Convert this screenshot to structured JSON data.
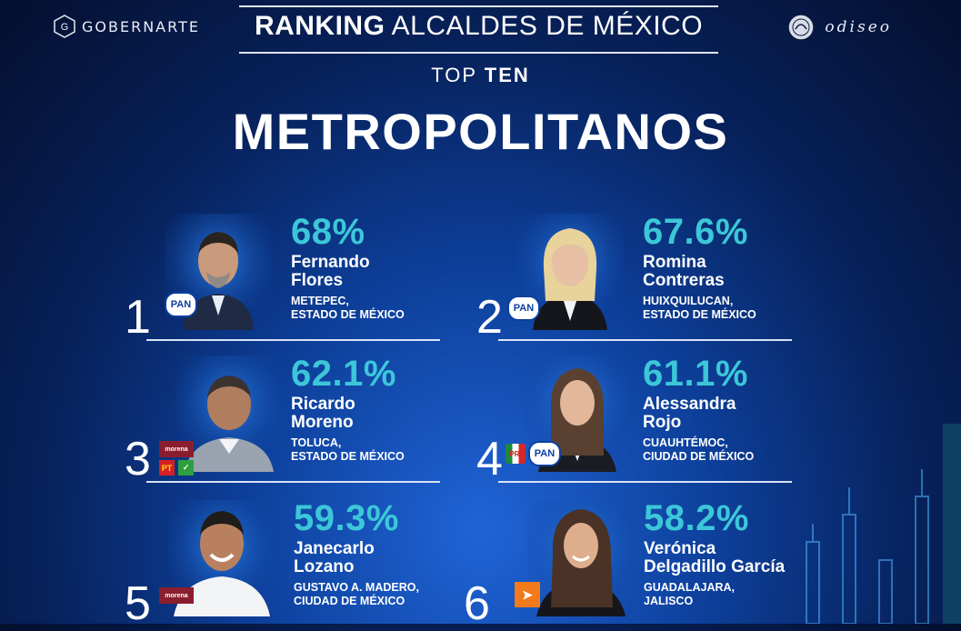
{
  "header": {
    "logo_left": "GOBERNARTE",
    "logo_right": "odiseo",
    "title_bold": "RANKING",
    "title_light": "ALCALDES DE MÉXICO",
    "subtitle_light": "TOP",
    "subtitle_bold": "TEN",
    "category": "METROPOLITANOS"
  },
  "colors": {
    "percent": "#3cc7d8",
    "background": "#0d3f9a"
  },
  "mayors": [
    {
      "rank": "1",
      "percent": "68%",
      "name_line1": "Fernando",
      "name_line2": "Flores",
      "place_line1": "METEPEC,",
      "place_line2": "ESTADO DE MÉXICO",
      "parties": [
        "PAN"
      ]
    },
    {
      "rank": "2",
      "percent": "67.6%",
      "name_line1": "Romina",
      "name_line2": "Contreras",
      "place_line1": "HUIXQUILUCAN,",
      "place_line2": "ESTADO DE MÉXICO",
      "parties": [
        "PAN"
      ]
    },
    {
      "rank": "3",
      "percent": "62.1%",
      "name_line1": "Ricardo",
      "name_line2": "Moreno",
      "place_line1": "TOLUCA,",
      "place_line2": "ESTADO DE MÉXICO",
      "parties": [
        "morena",
        "PT",
        "VERDE"
      ]
    },
    {
      "rank": "4",
      "percent": "61.1%",
      "name_line1": "Alessandra",
      "name_line2": "Rojo",
      "place_line1": "CUAUHTÉMOC,",
      "place_line2": "CIUDAD DE MÉXICO",
      "parties": [
        "PRI",
        "PAN"
      ]
    },
    {
      "rank": "5",
      "percent": "59.3%",
      "name_line1": "Janecarlo",
      "name_line2": "Lozano",
      "place_line1": "GUSTAVO A. MADERO,",
      "place_line2": "CIUDAD DE MÉXICO",
      "parties": [
        "morena"
      ]
    },
    {
      "rank": "6",
      "percent": "58.2%",
      "name_line1": "Verónica",
      "name_line2": "Delgadillo García",
      "place_line1": "GUADALAJARA,",
      "place_line2": "JALISCO",
      "parties": [
        "MC"
      ]
    }
  ]
}
